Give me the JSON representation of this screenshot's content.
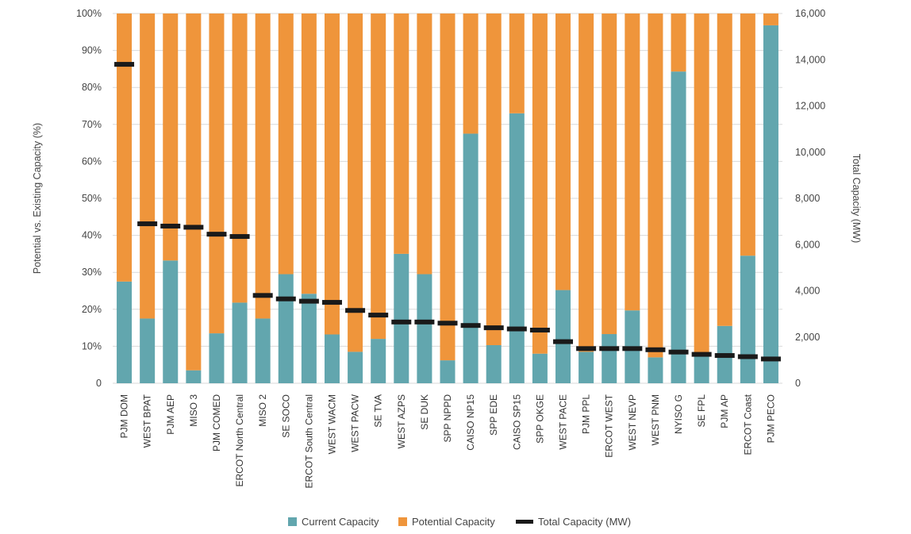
{
  "chart_data": {
    "type": "bar",
    "stacked": true,
    "normalized": true,
    "categories": [
      "PJM DOM",
      "WEST BPAT",
      "PJM AEP",
      "MISO 3",
      "PJM COMED",
      "ERCOT North Central",
      "MISO 2",
      "SE SOCO",
      "ERCOT South Central",
      "WEST WACM",
      "WEST PACW",
      "SE TVA",
      "WEST AZPS",
      "SE DUK",
      "SPP NPPD",
      "CAISO NP15",
      "SPP EDE",
      "CAISO SP15",
      "SPP OKGE",
      "WEST PACE",
      "PJM PPL",
      "ERCOT WEST",
      "WEST NEVP",
      "WEST PNM",
      "NYISO G",
      "SE FPL",
      "PJM AP",
      "ERCOT Coast",
      "PJM PECO"
    ],
    "series": [
      {
        "name": "Current Capacity",
        "color": "#62a6ae",
        "axis": "left",
        "unit": "%",
        "values": [
          27.5,
          17.5,
          33.2,
          3.5,
          13.5,
          21.8,
          17.5,
          29.5,
          24.2,
          13.2,
          8.5,
          12,
          35,
          29.5,
          6.2,
          67.5,
          10.3,
          73,
          8,
          25.2,
          8.5,
          13.3,
          19.7,
          7,
          84.3,
          7.5,
          15.5,
          34.5,
          96.8
        ]
      },
      {
        "name": "Potential Capacity",
        "color": "#ef953b",
        "axis": "left",
        "unit": "%",
        "values": [
          72.5,
          82.5,
          66.8,
          96.5,
          86.5,
          78.2,
          82.5,
          70.5,
          75.8,
          86.8,
          91.5,
          88,
          65,
          70.5,
          93.8,
          32.5,
          89.7,
          27,
          92,
          74.8,
          91.5,
          86.7,
          80.3,
          93,
          15.7,
          92.5,
          84.5,
          65.5,
          3.2
        ]
      },
      {
        "name": "Total Capacity (MW)",
        "color": "#1a1a1a",
        "axis": "right",
        "unit": "MW",
        "values": [
          13800,
          6900,
          6800,
          6750,
          6450,
          6350,
          3800,
          3650,
          3550,
          3500,
          3150,
          2950,
          2650,
          2650,
          2600,
          2500,
          2400,
          2350,
          2300,
          1800,
          1500,
          1500,
          1500,
          1450,
          1350,
          1250,
          1200,
          1150,
          1050
        ]
      }
    ],
    "yleft": {
      "label": "Potential vs. Existing Capacity (%)",
      "range": [
        0,
        100
      ],
      "ticks": [
        "0",
        "10%",
        "20%",
        "30%",
        "40%",
        "50%",
        "60%",
        "70%",
        "80%",
        "90%",
        "100%"
      ]
    },
    "yright": {
      "label": "Total Capacity (MW)",
      "range": [
        0,
        16000
      ],
      "ticks": [
        "0",
        "2,000",
        "4,000",
        "6,000",
        "8,000",
        "10,000",
        "12,000",
        "14,000",
        "16,000"
      ]
    },
    "grid": "horizontal",
    "legend_position": "bottom"
  }
}
